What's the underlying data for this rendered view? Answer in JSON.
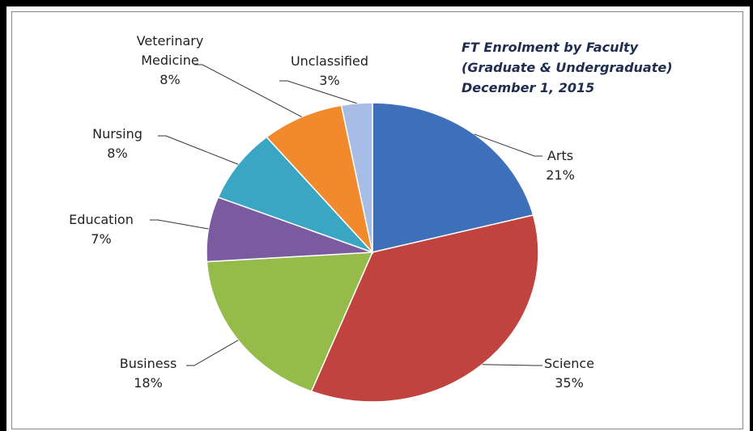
{
  "chart_data": {
    "type": "pie",
    "title": [
      "FT Enrolment by Faculty",
      "(Graduate & Undergraduate)",
      "December  1, 2015"
    ],
    "categories": [
      "Arts",
      "Science",
      "Business",
      "Education",
      "Nursing",
      "Veterinary Medicine",
      "Unclassified"
    ],
    "values": [
      21,
      35,
      18,
      7,
      8,
      8,
      3
    ],
    "value_labels": [
      "21%",
      "35%",
      "18%",
      "7%",
      "8%",
      "8%",
      "3%"
    ],
    "colors": [
      "#3d70b8",
      "#c0433f",
      "#95bb4a",
      "#7a5b9f",
      "#3ba6c4",
      "#f08a2c",
      "#a7bde6"
    ]
  }
}
